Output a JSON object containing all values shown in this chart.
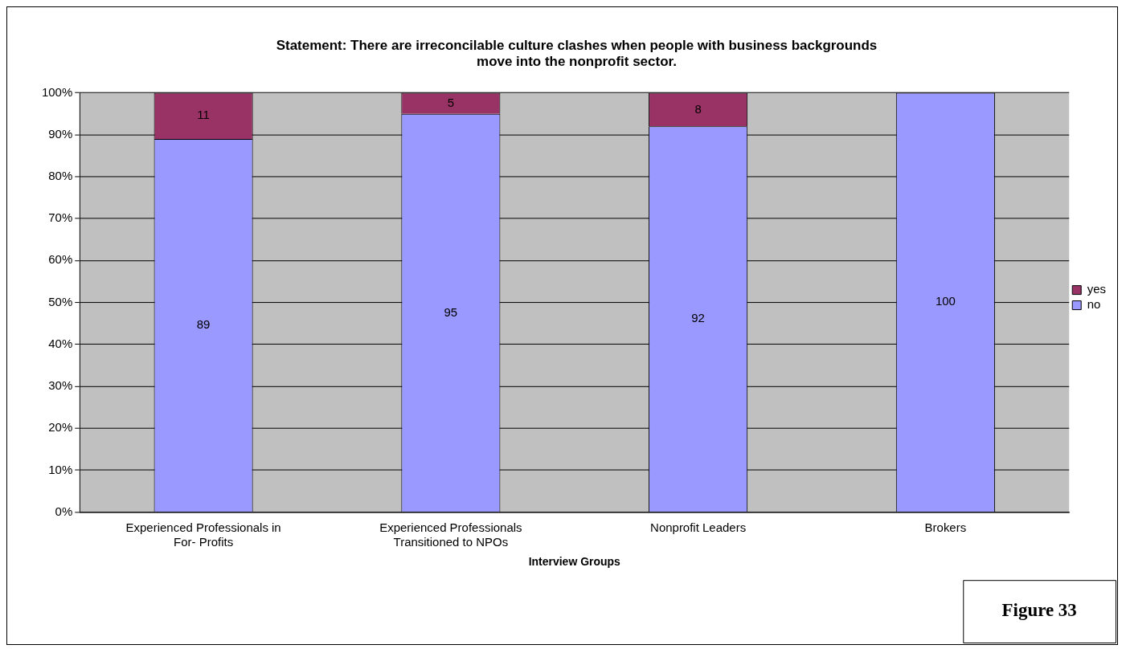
{
  "chart_data": {
    "type": "bar",
    "stacked": true,
    "title": "Statement: There are irreconcilable culture clashes when people with business backgrounds move into the nonprofit sector.",
    "xlabel": "Interview Groups",
    "categories": [
      "Experienced Professionals in For- Profits",
      "Experienced Professionals Transitioned to NPOs",
      "Nonprofit Leaders",
      "Brokers"
    ],
    "series": [
      {
        "name": "no",
        "color": "#9999ff",
        "values": [
          89,
          95,
          92,
          100
        ],
        "value_labels": [
          "89",
          "95",
          "92",
          "100"
        ]
      },
      {
        "name": "yes",
        "color": "#993366",
        "values": [
          11,
          5,
          8,
          0
        ],
        "value_labels": [
          "11",
          "5",
          "8",
          null
        ]
      }
    ],
    "ylim": [
      0,
      100
    ],
    "yticks": [
      {
        "value": 0,
        "label": "0%"
      },
      {
        "value": 10,
        "label": "10%"
      },
      {
        "value": 20,
        "label": "20%"
      },
      {
        "value": 30,
        "label": "30%"
      },
      {
        "value": 40,
        "label": "40%"
      },
      {
        "value": 50,
        "label": "50%"
      },
      {
        "value": 60,
        "label": "60%"
      },
      {
        "value": 70,
        "label": "70%"
      },
      {
        "value": 80,
        "label": "80%"
      },
      {
        "value": 90,
        "label": "90%"
      },
      {
        "value": 100,
        "label": "100%"
      }
    ],
    "grid": "y",
    "legend": "right",
    "annotations": [
      "Figure 33"
    ]
  }
}
